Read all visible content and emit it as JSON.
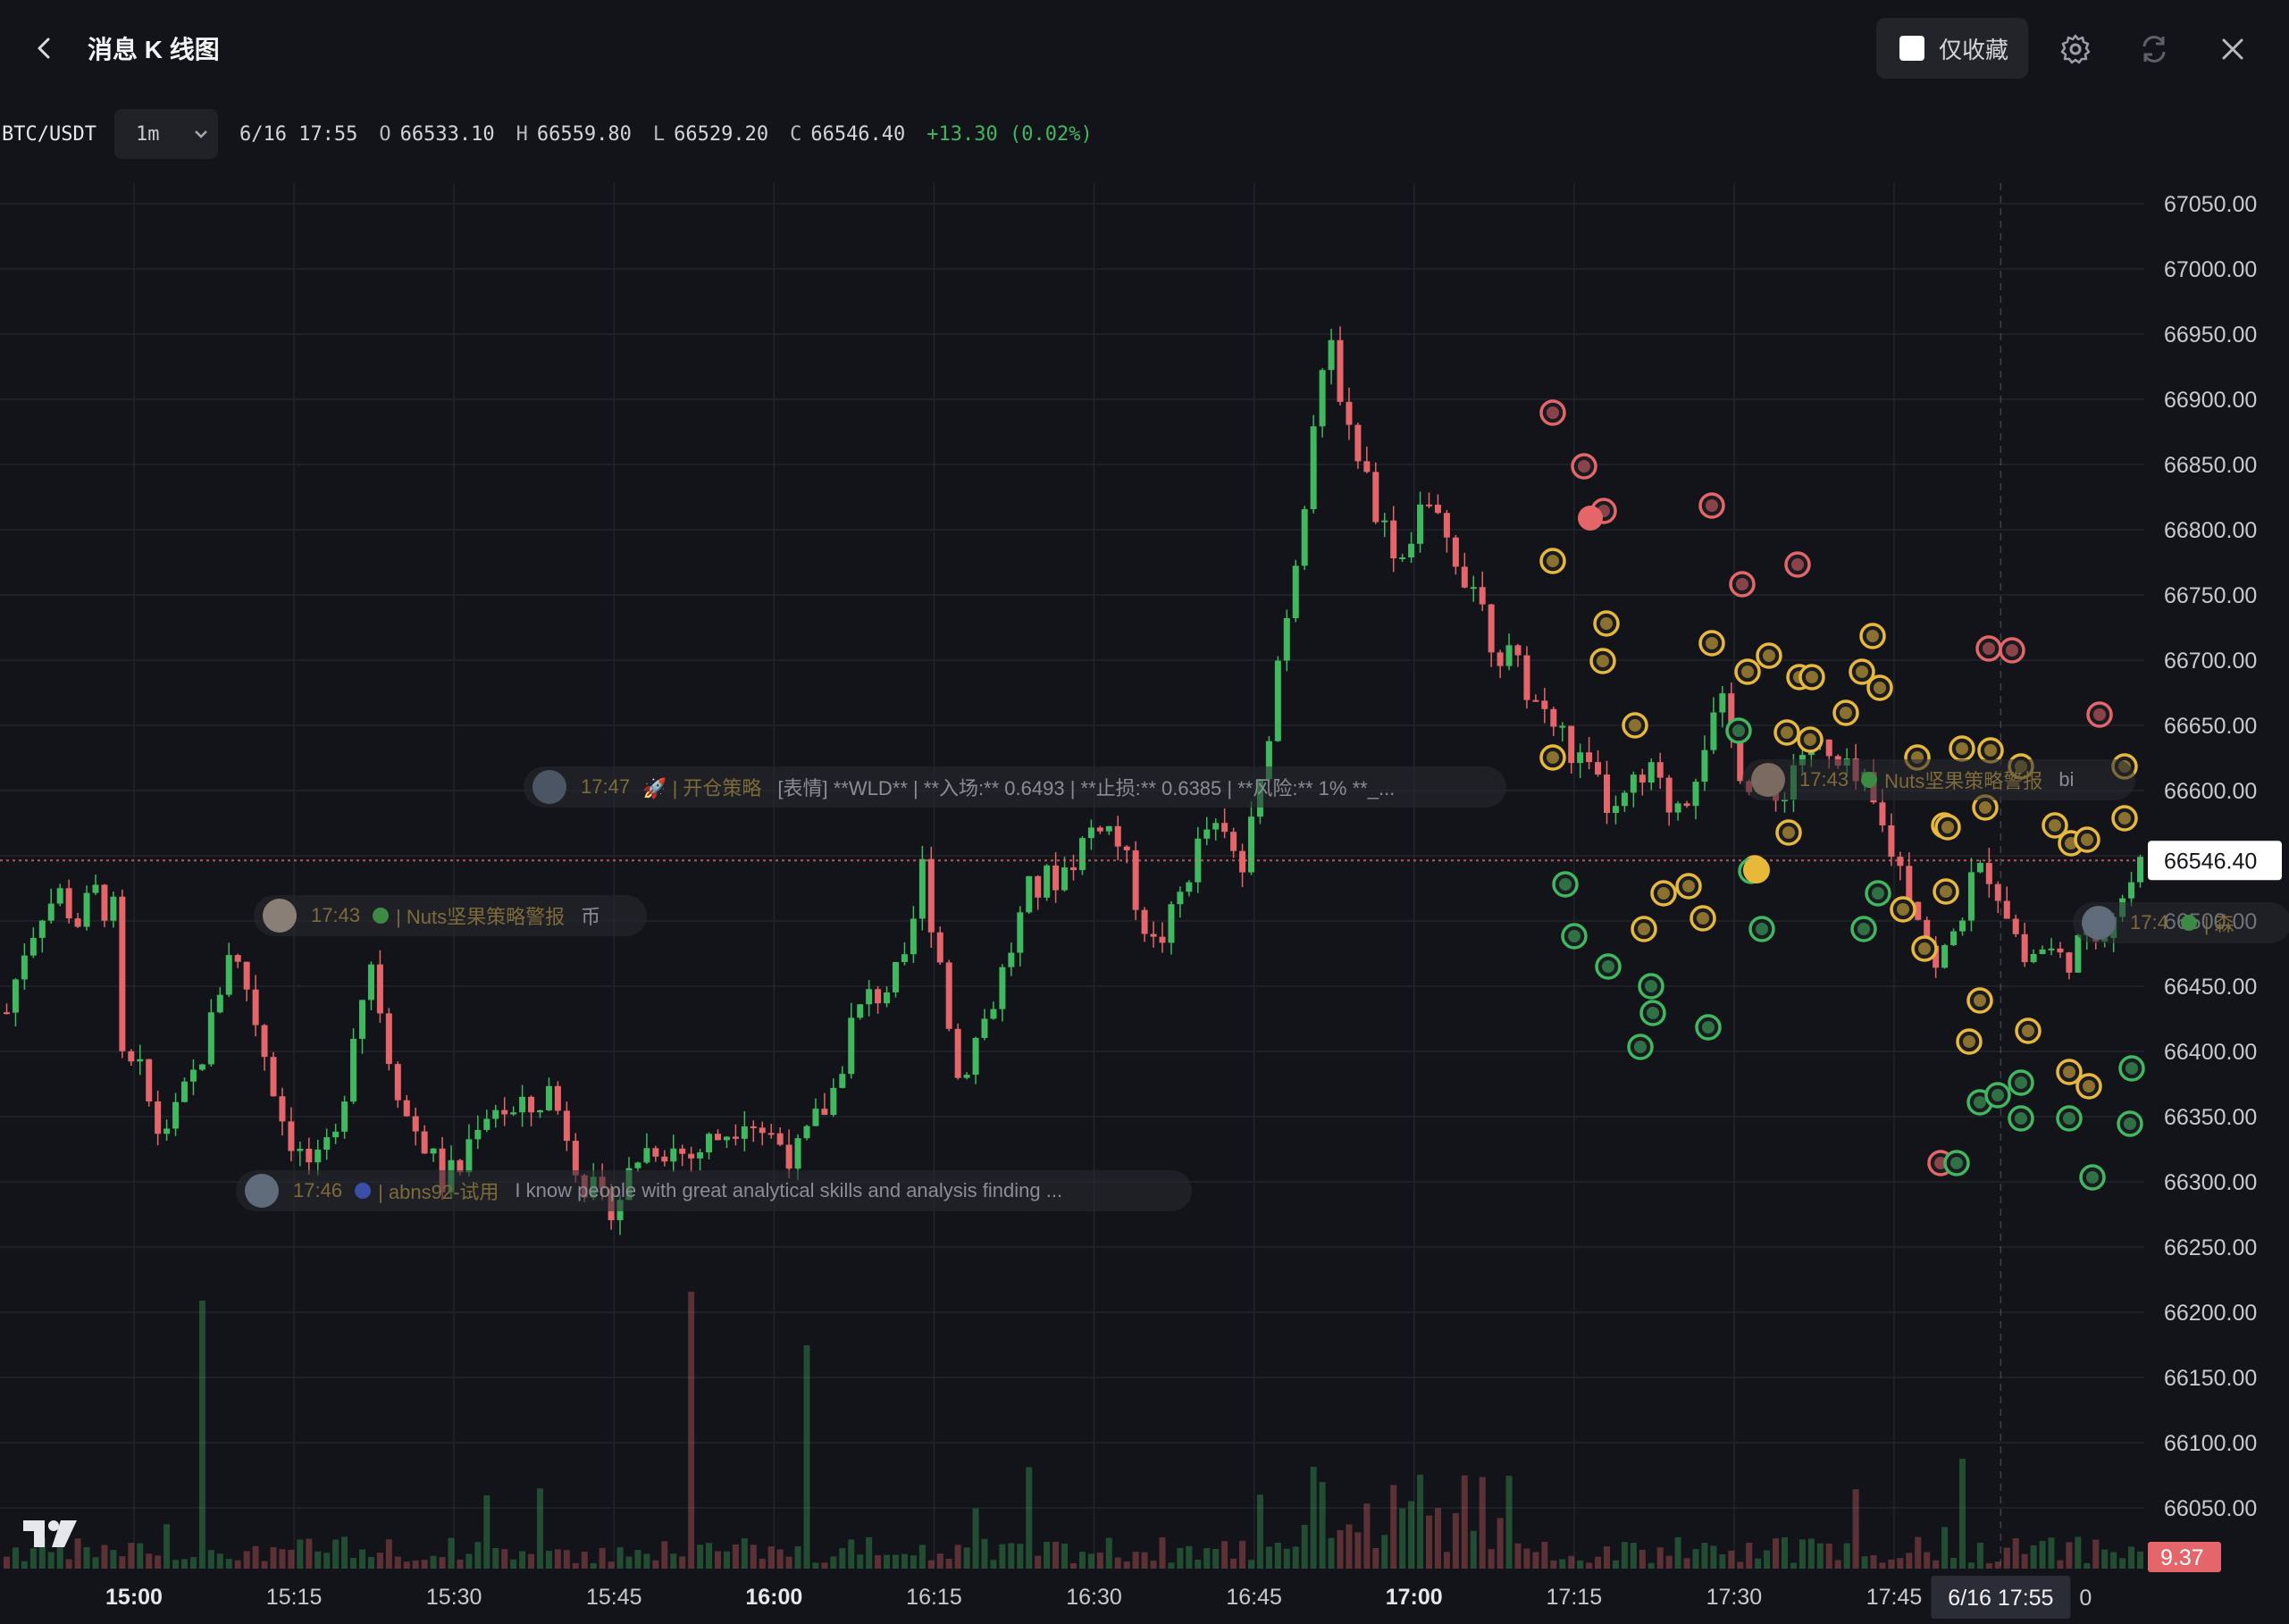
{
  "header": {
    "title": "消息 K 线图",
    "favorites_label": "仅收藏"
  },
  "icons": {
    "back": "chevron-left-icon",
    "settings": "gear-icon",
    "refresh": "refresh-icon",
    "close": "close-icon",
    "dropdown": "chevron-down-icon",
    "brand": "tradingview-logo"
  },
  "info_bar": {
    "symbol": "BTC/USDT",
    "interval": "1m",
    "datetime": "6/16 17:55",
    "open_label": "O",
    "open": "66533.10",
    "high_label": "H",
    "high": "66559.80",
    "low_label": "L",
    "low": "66529.20",
    "close_label": "C",
    "close": "66546.40",
    "change": "+13.30 (0.02%)"
  },
  "colors": {
    "up": "#3fb860",
    "down": "#e5666a",
    "background": "#131419",
    "last_price_line": "#e5666a",
    "marker_gold": "#e7b83a",
    "marker_green": "#3fb860",
    "marker_red": "#e5666a"
  },
  "price_axis": {
    "labels": [
      "67050.00",
      "67000.00",
      "66950.00",
      "66900.00",
      "66850.00",
      "66800.00",
      "66750.00",
      "66700.00",
      "66650.00",
      "66600.00",
      "66550.00",
      "66500.00",
      "66450.00",
      "66400.00",
      "66350.00",
      "66300.00",
      "66250.00",
      "66200.00",
      "66150.00",
      "66100.00",
      "66050.00"
    ],
    "last_price": "66546.40",
    "volume_value": "9.37"
  },
  "time_axis": {
    "labels": [
      "15:00",
      "15:15",
      "15:30",
      "15:45",
      "16:00",
      "16:15",
      "16:30",
      "16:45",
      "17:00",
      "17:15",
      "17:30",
      "17:45"
    ],
    "crosshair_label": "6/16 17:55",
    "trailing_label": "0"
  },
  "messages": [
    {
      "time": "17:47",
      "author": "🚀 | 开仓策略",
      "text": "[表情] **WLD** | **入场:** 0.6493 | **止损:** 0.6385 | **风险:** 1% **_..."
    },
    {
      "time": "17:43",
      "author": "| Nuts坚果策略警报",
      "text": "币"
    },
    {
      "time": "17:46",
      "author": "| abns92-试用",
      "text": "I know people with great analytical skills and analysis finding ..."
    },
    {
      "time": "17:43",
      "author": "Nuts坚果策略警报",
      "text": "bi"
    },
    {
      "time": "17:4",
      "author": "| 森",
      "text": ""
    }
  ],
  "chart_data": {
    "type": "candlestick",
    "interval": "1m",
    "y_axis_range": [
      66025,
      67075
    ],
    "x_axis_range": [
      "14:53",
      "17:58"
    ],
    "last_candle": {
      "time": "17:55",
      "open": 66533.1,
      "high": 66559.8,
      "low": 66529.2,
      "close": 66546.4
    },
    "price_path": [
      [
        0,
        66430
      ],
      [
        4,
        66480
      ],
      [
        8,
        66510
      ],
      [
        12,
        66520
      ],
      [
        16,
        66500
      ],
      [
        20,
        66520
      ],
      [
        24,
        66505
      ],
      [
        26,
        66390
      ],
      [
        30,
        66380
      ],
      [
        34,
        66340
      ],
      [
        38,
        66350
      ],
      [
        42,
        66380
      ],
      [
        46,
        66420
      ],
      [
        50,
        66480
      ],
      [
        54,
        66450
      ],
      [
        58,
        66400
      ],
      [
        62,
        66350
      ],
      [
        66,
        66320
      ],
      [
        70,
        66310
      ],
      [
        74,
        66330
      ],
      [
        78,
        66420
      ],
      [
        82,
        66470
      ],
      [
        86,
        66400
      ],
      [
        90,
        66350
      ],
      [
        94,
        66330
      ],
      [
        98,
        66300
      ],
      [
        102,
        66310
      ],
      [
        106,
        66350
      ],
      [
        110,
        66360
      ],
      [
        114,
        66350
      ],
      [
        118,
        66355
      ],
      [
        122,
        66370
      ],
      [
        126,
        66340
      ],
      [
        130,
        66300
      ],
      [
        134,
        66280
      ],
      [
        138,
        66290
      ],
      [
        142,
        66320
      ],
      [
        146,
        66330
      ],
      [
        150,
        66325
      ],
      [
        154,
        66320
      ],
      [
        158,
        66330
      ],
      [
        162,
        66340
      ],
      [
        166,
        66355
      ],
      [
        170,
        66340
      ],
      [
        174,
        66330
      ],
      [
        178,
        66320
      ],
      [
        182,
        66345
      ],
      [
        186,
        66370
      ],
      [
        190,
        66420
      ],
      [
        194,
        66440
      ],
      [
        198,
        66450
      ],
      [
        202,
        66460
      ],
      [
        206,
        66540
      ],
      [
        210,
        66470
      ],
      [
        214,
        66380
      ],
      [
        218,
        66410
      ],
      [
        222,
        66440
      ],
      [
        226,
        66480
      ],
      [
        230,
        66520
      ],
      [
        234,
        66530
      ],
      [
        238,
        66540
      ],
      [
        242,
        66560
      ],
      [
        246,
        66580
      ],
      [
        250,
        66560
      ],
      [
        254,
        66520
      ],
      [
        258,
        66480
      ],
      [
        262,
        66500
      ],
      [
        266,
        66540
      ],
      [
        270,
        66570
      ],
      [
        274,
        66560
      ],
      [
        278,
        66540
      ],
      [
        282,
        66600
      ],
      [
        286,
        66700
      ],
      [
        290,
        66780
      ],
      [
        294,
        66880
      ],
      [
        298,
        66940
      ],
      [
        302,
        66880
      ],
      [
        306,
        66840
      ],
      [
        310,
        66800
      ],
      [
        314,
        66780
      ],
      [
        318,
        66820
      ],
      [
        322,
        66800
      ],
      [
        326,
        66780
      ],
      [
        330,
        66760
      ],
      [
        334,
        66720
      ],
      [
        338,
        66700
      ],
      [
        342,
        66680
      ],
      [
        346,
        66660
      ],
      [
        350,
        66640
      ],
      [
        354,
        66620
      ],
      [
        358,
        66600
      ],
      [
        362,
        66580
      ],
      [
        366,
        66600
      ],
      [
        370,
        66610
      ],
      [
        374,
        66590
      ],
      [
        378,
        66600
      ],
      [
        382,
        66640
      ],
      [
        386,
        66660
      ],
      [
        390,
        66620
      ],
      [
        394,
        66600
      ],
      [
        398,
        66590
      ],
      [
        402,
        66620
      ],
      [
        406,
        66640
      ],
      [
        410,
        66620
      ],
      [
        414,
        66610
      ],
      [
        418,
        66600
      ],
      [
        422,
        66570
      ],
      [
        426,
        66540
      ],
      [
        430,
        66510
      ],
      [
        434,
        66460
      ],
      [
        438,
        66490
      ],
      [
        442,
        66530
      ],
      [
        446,
        66540
      ],
      [
        450,
        66510
      ],
      [
        454,
        66470
      ],
      [
        458,
        66480
      ],
      [
        462,
        66470
      ],
      [
        466,
        66480
      ],
      [
        470,
        66490
      ],
      [
        474,
        66510
      ],
      [
        478,
        66530
      ],
      [
        482,
        66550
      ]
    ]
  }
}
